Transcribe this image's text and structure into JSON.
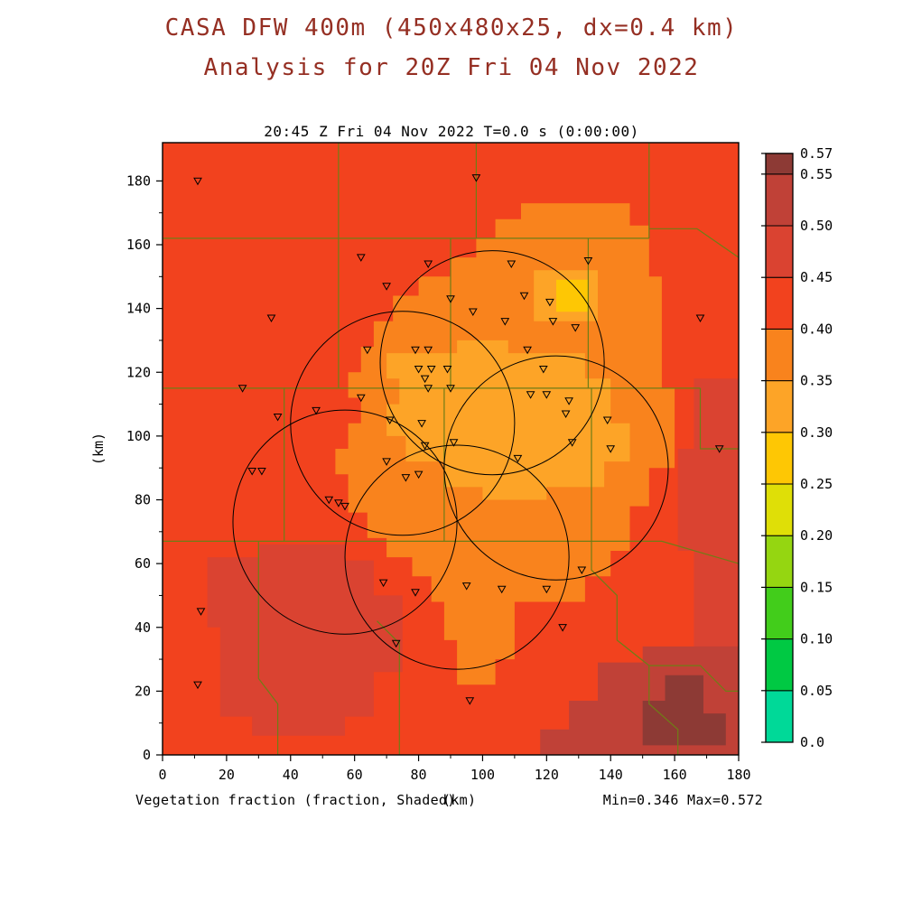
{
  "header": {
    "title_line1": "CASA DFW 400m (450x480x25, dx=0.4 km)",
    "title_line2": "Analysis for 20Z Fri 04 Nov 2022"
  },
  "plot": {
    "timestamp": "20:45 Z Fri 04 Nov 2022   T=0.0 s (0:00:00)",
    "y_axis_label": "(km)",
    "x_axis_unit": "(km)",
    "field_label": "Vegetation fraction (fraction, Shaded)",
    "stats": "Min=0.346 Max=0.572"
  },
  "accent_colors": {
    "title": "#952f23",
    "county_boundary": "#6f7d16",
    "main_field_red": "#f2421e"
  },
  "chart_data": {
    "type": "heatmap",
    "title": "Vegetation fraction (fraction, Shaded)",
    "xlabel": "(km)",
    "ylabel": "(km)",
    "x_range": [
      0,
      180
    ],
    "y_range": [
      0,
      192
    ],
    "x_ticks": [
      0,
      20,
      40,
      60,
      80,
      100,
      120,
      140,
      160,
      180
    ],
    "y_ticks": [
      0,
      20,
      40,
      60,
      80,
      100,
      120,
      140,
      160,
      180
    ],
    "min_value": 0.346,
    "max_value": 0.572,
    "grid": false,
    "legend_position": "right-colorbar",
    "boundary_color": "#6f7d16",
    "colorbar": {
      "levels": [
        0,
        0.05,
        0.1,
        0.15,
        0.2,
        0.25,
        0.3,
        0.35,
        0.4,
        0.45,
        0.5,
        0.55,
        0.57
      ],
      "labels": [
        "0.0",
        "0.05",
        "0.10",
        "0.15",
        "0.20",
        "0.25",
        "0.30",
        "0.35",
        "0.40",
        "0.45",
        "0.50",
        "0.55",
        "0.57"
      ],
      "colors": [
        "#00d998",
        "#00c943",
        "#42cd1b",
        "#95d611",
        "#dfdf07",
        "#fec704",
        "#fda427",
        "#f9831d",
        "#f2421e",
        "#da4331",
        "#c04137",
        "#8d3a35"
      ]
    },
    "field_regions": [
      {
        "value_range": "0.40-0.45",
        "color": "#f2421e",
        "points": [
          [
            0,
            0
          ],
          [
            180,
            0
          ],
          [
            180,
            192
          ],
          [
            0,
            192
          ]
        ]
      },
      {
        "value_range": "0.45-0.50",
        "color": "#da4331",
        "points": [
          [
            160,
            0
          ],
          [
            160,
            28
          ],
          [
            166,
            28
          ],
          [
            166,
            64
          ],
          [
            161,
            64
          ],
          [
            161,
            96
          ],
          [
            166,
            96
          ],
          [
            166,
            118
          ],
          [
            180,
            118
          ],
          [
            180,
            0
          ]
        ]
      },
      {
        "value_range": "0.45-0.50",
        "color": "#da4331",
        "points": [
          [
            14,
            40
          ],
          [
            14,
            62
          ],
          [
            30,
            62
          ],
          [
            30,
            66
          ],
          [
            57,
            66
          ],
          [
            57,
            61
          ],
          [
            66,
            61
          ],
          [
            66,
            50
          ],
          [
            75,
            50
          ],
          [
            75,
            26
          ],
          [
            66,
            26
          ],
          [
            66,
            12
          ],
          [
            57,
            12
          ],
          [
            57,
            6
          ],
          [
            28,
            6
          ],
          [
            28,
            12
          ],
          [
            18,
            12
          ],
          [
            18,
            40
          ]
        ]
      },
      {
        "value_range": "0.50-0.55",
        "color": "#c04137",
        "points": [
          [
            118,
            0
          ],
          [
            118,
            8
          ],
          [
            127,
            8
          ],
          [
            127,
            17
          ],
          [
            136,
            17
          ],
          [
            136,
            29
          ],
          [
            150,
            29
          ],
          [
            150,
            34
          ],
          [
            180,
            34
          ],
          [
            180,
            0
          ]
        ]
      },
      {
        "value_range": "0.55-0.57",
        "color": "#8d3a35",
        "points": [
          [
            150,
            3
          ],
          [
            150,
            17
          ],
          [
            157,
            17
          ],
          [
            157,
            25
          ],
          [
            169,
            25
          ],
          [
            169,
            13
          ],
          [
            176,
            13
          ],
          [
            176,
            3
          ]
        ]
      },
      {
        "value_range": "0.35-0.40",
        "color": "#f9831d",
        "points": [
          [
            104,
            168
          ],
          [
            112,
            168
          ],
          [
            112,
            173
          ],
          [
            146,
            173
          ],
          [
            146,
            166
          ],
          [
            152,
            166
          ],
          [
            152,
            150
          ],
          [
            156,
            150
          ],
          [
            156,
            115
          ],
          [
            160,
            115
          ],
          [
            160,
            90
          ],
          [
            152,
            90
          ],
          [
            152,
            78
          ],
          [
            146,
            78
          ],
          [
            146,
            64
          ],
          [
            140,
            64
          ],
          [
            140,
            56
          ],
          [
            132,
            56
          ],
          [
            132,
            48
          ],
          [
            110,
            48
          ],
          [
            110,
            30
          ],
          [
            104,
            30
          ],
          [
            104,
            22
          ],
          [
            92,
            22
          ],
          [
            92,
            36
          ],
          [
            88,
            36
          ],
          [
            88,
            48
          ],
          [
            84,
            48
          ],
          [
            84,
            56
          ],
          [
            78,
            56
          ],
          [
            78,
            62
          ],
          [
            70,
            62
          ],
          [
            70,
            68
          ],
          [
            64,
            68
          ],
          [
            64,
            76
          ],
          [
            58,
            76
          ],
          [
            58,
            88
          ],
          [
            54,
            88
          ],
          [
            54,
            96
          ],
          [
            58,
            96
          ],
          [
            58,
            104
          ],
          [
            62,
            104
          ],
          [
            62,
            112
          ],
          [
            58,
            112
          ],
          [
            58,
            120
          ],
          [
            62,
            120
          ],
          [
            62,
            128
          ],
          [
            66,
            128
          ],
          [
            66,
            136
          ],
          [
            72,
            136
          ],
          [
            72,
            144
          ],
          [
            80,
            144
          ],
          [
            80,
            150
          ],
          [
            90,
            150
          ],
          [
            90,
            156
          ],
          [
            98,
            156
          ],
          [
            98,
            162
          ],
          [
            104,
            162
          ]
        ]
      },
      {
        "value_range": "0.30-0.35",
        "color": "#fda427",
        "points": [
          [
            70,
            118
          ],
          [
            70,
            126
          ],
          [
            92,
            126
          ],
          [
            92,
            130
          ],
          [
            108,
            130
          ],
          [
            108,
            126
          ],
          [
            132,
            126
          ],
          [
            132,
            118
          ],
          [
            140,
            118
          ],
          [
            140,
            104
          ],
          [
            146,
            104
          ],
          [
            146,
            92
          ],
          [
            138,
            92
          ],
          [
            138,
            84
          ],
          [
            120,
            84
          ],
          [
            120,
            80
          ],
          [
            100,
            80
          ],
          [
            100,
            84
          ],
          [
            88,
            84
          ],
          [
            88,
            92
          ],
          [
            76,
            92
          ],
          [
            76,
            100
          ],
          [
            70,
            100
          ],
          [
            70,
            110
          ],
          [
            74,
            110
          ],
          [
            74,
            118
          ]
        ]
      },
      {
        "value_range": "0.30-0.35",
        "color": "#fda427",
        "points": [
          [
            116,
            152
          ],
          [
            136,
            152
          ],
          [
            136,
            136
          ],
          [
            116,
            136
          ]
        ]
      },
      {
        "value_range": "0.25-0.30",
        "color": "#fec704",
        "points": [
          [
            123,
            149
          ],
          [
            133,
            149
          ],
          [
            133,
            139
          ],
          [
            123,
            139
          ]
        ]
      }
    ],
    "county_lines": [
      [
        [
          0,
          162
        ],
        [
          152,
          162
        ]
      ],
      [
        [
          55,
          192
        ],
        [
          55,
          162
        ]
      ],
      [
        [
          98,
          192
        ],
        [
          98,
          162
        ]
      ],
      [
        [
          152,
          192
        ],
        [
          152,
          162
        ]
      ],
      [
        [
          152,
          165
        ],
        [
          167,
          165
        ],
        [
          180,
          156
        ]
      ],
      [
        [
          0,
          115
        ],
        [
          168,
          115
        ]
      ],
      [
        [
          55,
          162
        ],
        [
          55,
          115
        ]
      ],
      [
        [
          90,
          162
        ],
        [
          90,
          115
        ]
      ],
      [
        [
          133,
          162
        ],
        [
          133,
          115
        ]
      ],
      [
        [
          168,
          115
        ],
        [
          168,
          96
        ],
        [
          180,
          96
        ]
      ],
      [
        [
          38,
          115
        ],
        [
          38,
          67
        ]
      ],
      [
        [
          0,
          67
        ],
        [
          134,
          67
        ]
      ],
      [
        [
          88,
          115
        ],
        [
          88,
          67
        ]
      ],
      [
        [
          134,
          115
        ],
        [
          134,
          67
        ]
      ],
      [
        [
          134,
          67
        ],
        [
          156,
          67
        ],
        [
          180,
          60
        ]
      ],
      [
        [
          134,
          67
        ],
        [
          134,
          58
        ],
        [
          142,
          50
        ],
        [
          142,
          36
        ],
        [
          152,
          28
        ],
        [
          152,
          16
        ],
        [
          161,
          8
        ],
        [
          161,
          0
        ]
      ],
      [
        [
          152,
          28
        ],
        [
          168,
          28
        ],
        [
          176,
          20
        ],
        [
          180,
          20
        ]
      ],
      [
        [
          74,
          0
        ],
        [
          74,
          35
        ],
        [
          67,
          42
        ]
      ],
      [
        [
          30,
          67
        ],
        [
          30,
          24
        ],
        [
          36,
          16
        ],
        [
          36,
          0
        ]
      ]
    ],
    "range_rings": {
      "radius_km": 35,
      "centers": [
        [
          103,
          123
        ],
        [
          75,
          104
        ],
        [
          57,
          73
        ],
        [
          92,
          62
        ],
        [
          123,
          90
        ]
      ]
    },
    "stations": [
      [
        11,
        180
      ],
      [
        98,
        181
      ],
      [
        62,
        156
      ],
      [
        83,
        154
      ],
      [
        109,
        154
      ],
      [
        133,
        155
      ],
      [
        70,
        147
      ],
      [
        34,
        137
      ],
      [
        90,
        143
      ],
      [
        97,
        139
      ],
      [
        113,
        144
      ],
      [
        121,
        142
      ],
      [
        107,
        136
      ],
      [
        122,
        136
      ],
      [
        129,
        134
      ],
      [
        168,
        137
      ],
      [
        64,
        127
      ],
      [
        79,
        127
      ],
      [
        83,
        127
      ],
      [
        80,
        121
      ],
      [
        84,
        121
      ],
      [
        89,
        121
      ],
      [
        82,
        118
      ],
      [
        25,
        115
      ],
      [
        62,
        112
      ],
      [
        83,
        115
      ],
      [
        90,
        115
      ],
      [
        114,
        127
      ],
      [
        119,
        121
      ],
      [
        115,
        113
      ],
      [
        120,
        113
      ],
      [
        127,
        111
      ],
      [
        36,
        106
      ],
      [
        48,
        108
      ],
      [
        71,
        105
      ],
      [
        81,
        104
      ],
      [
        126,
        107
      ],
      [
        139,
        105
      ],
      [
        70,
        92
      ],
      [
        82,
        97
      ],
      [
        91,
        98
      ],
      [
        76,
        87
      ],
      [
        80,
        88
      ],
      [
        111,
        93
      ],
      [
        128,
        98
      ],
      [
        140,
        96
      ],
      [
        174,
        96
      ],
      [
        28,
        89
      ],
      [
        31,
        89
      ],
      [
        52,
        80
      ],
      [
        55,
        79
      ],
      [
        57,
        78
      ],
      [
        12,
        45
      ],
      [
        69,
        54
      ],
      [
        79,
        51
      ],
      [
        95,
        53
      ],
      [
        106,
        52
      ],
      [
        120,
        52
      ],
      [
        131,
        58
      ],
      [
        125,
        40
      ],
      [
        73,
        35
      ],
      [
        11,
        22
      ],
      [
        96,
        17
      ]
    ]
  }
}
